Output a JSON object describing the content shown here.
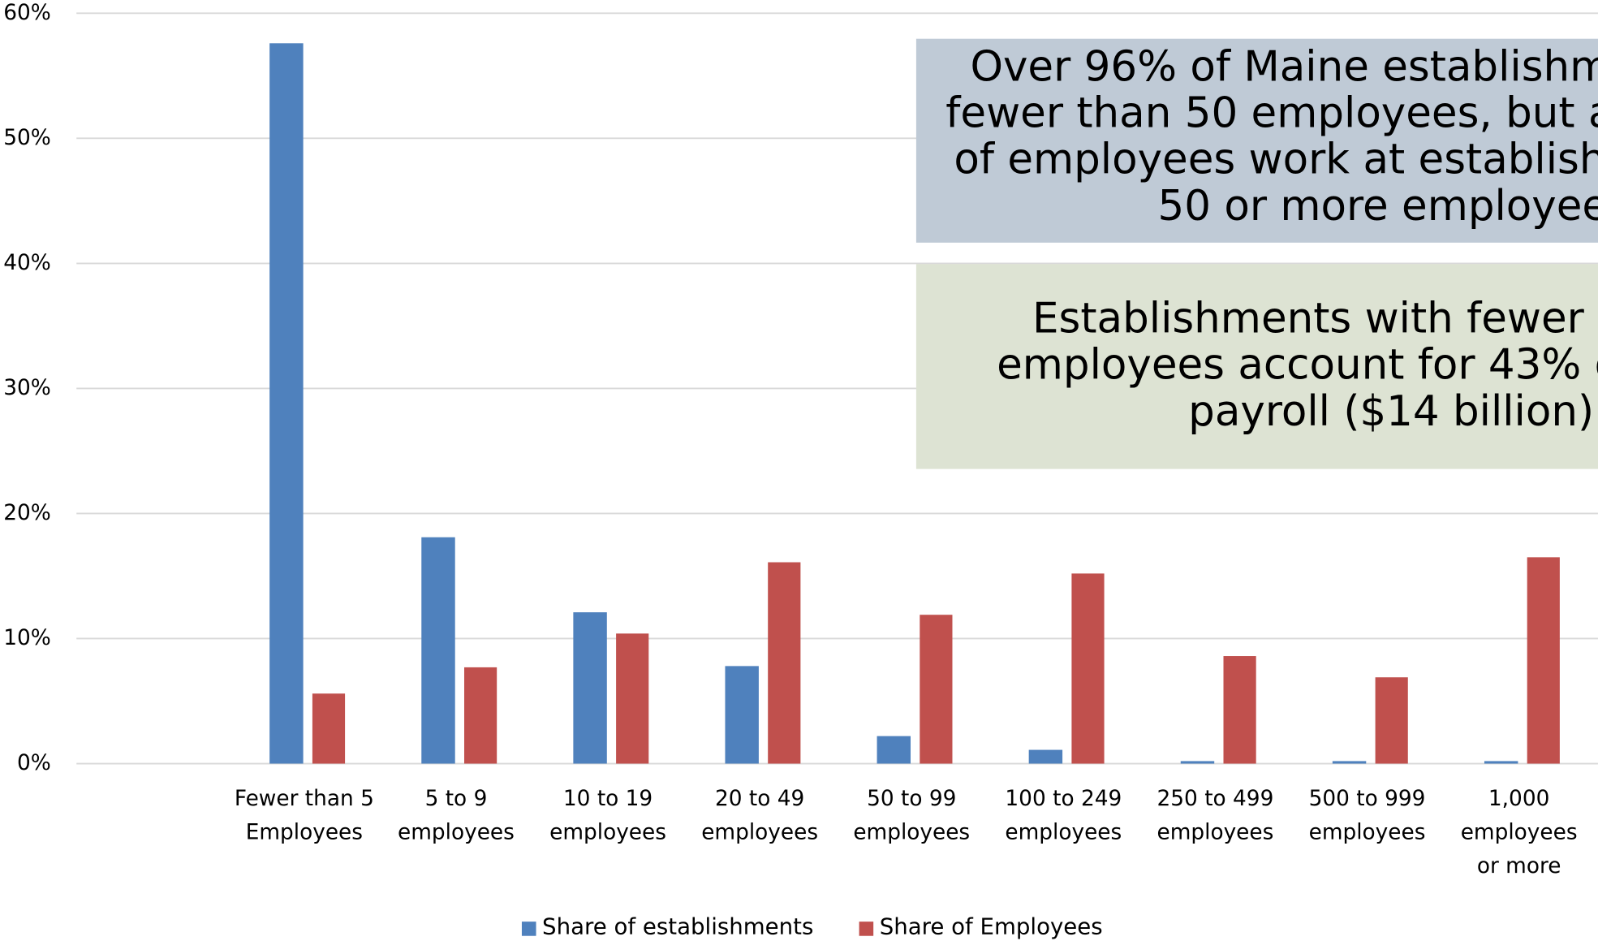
{
  "chart_data": {
    "type": "bar",
    "categories": [
      null,
      [
        "Fewer than 5",
        "Employees"
      ],
      [
        "5 to 9",
        "employees"
      ],
      [
        "10 to 19",
        "employees"
      ],
      [
        "20 to 49",
        "employees"
      ],
      [
        "50 to 99",
        "employees"
      ],
      [
        "100 to 249",
        "employees"
      ],
      [
        "250 to 499",
        "employees"
      ],
      [
        "500 to 999",
        "employees"
      ],
      [
        "1,000",
        "employees",
        "or more"
      ]
    ],
    "series": [
      {
        "name": "Share of establishments",
        "color": "#4f81bd",
        "values": [
          null,
          57.6,
          18.1,
          12.1,
          7.8,
          2.2,
          1.1,
          0.2,
          0.2,
          0.2
        ]
      },
      {
        "name": "Share of Employees",
        "color": "#c0504d",
        "values": [
          null,
          5.6,
          7.7,
          10.4,
          16.1,
          11.9,
          15.2,
          8.6,
          6.9,
          16.5
        ]
      }
    ],
    "ylim": [
      0,
      60
    ],
    "yticks": [
      {
        "value": 0,
        "label": "0%"
      },
      {
        "value": 10,
        "label": "10%"
      },
      {
        "value": 20,
        "label": "20%"
      },
      {
        "value": 30,
        "label": "30%"
      },
      {
        "value": 40,
        "label": "40%"
      },
      {
        "value": 50,
        "label": "50%"
      },
      {
        "value": 60,
        "label": "60%"
      }
    ],
    "grid": true,
    "legend": "bottom",
    "annotations": [
      {
        "color": "#bfcad6",
        "lines": [
          "Over 96% of Maine establishm",
          "fewer than 50 employees, but a",
          "of employees work at establish",
          "50 or more employee"
        ]
      },
      {
        "color": "#dde3d3",
        "lines": [
          "Establishments with fewer t",
          "employees account for 43% o",
          "payroll ($14 billion)"
        ]
      }
    ]
  }
}
